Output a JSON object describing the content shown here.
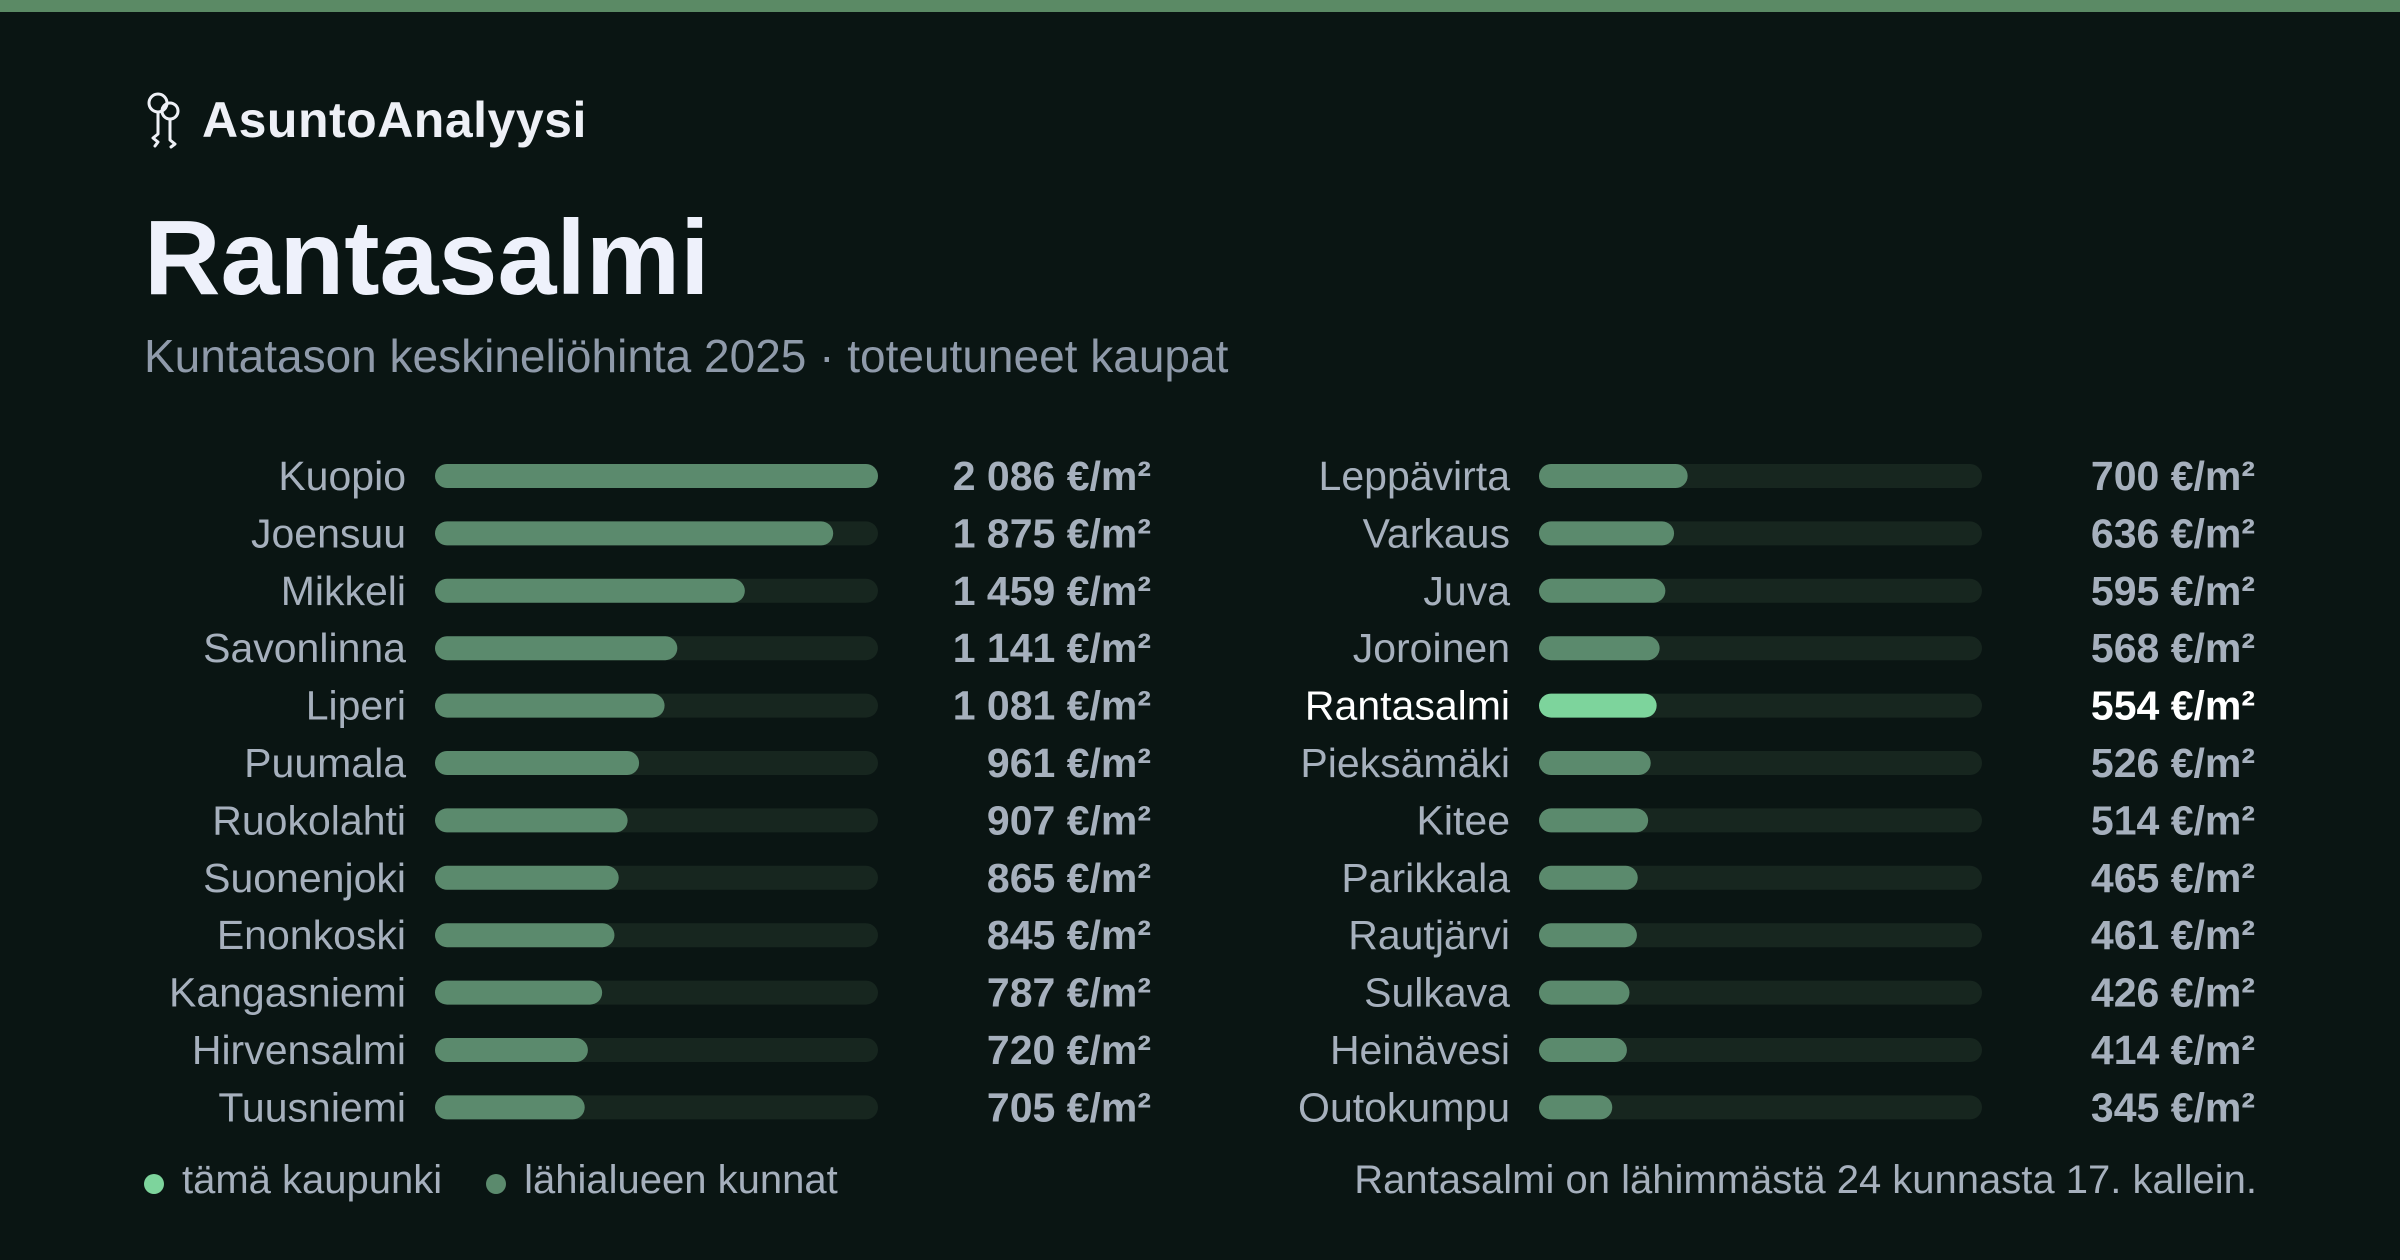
{
  "brand": {
    "name": "AsuntoAnalyysi",
    "icon": "keys-icon"
  },
  "title": "Rantasalmi",
  "subtitle": "Kuntatason keskineliöhinta 2025 · toteutuneet kaupat",
  "colors": {
    "background": "#0a1513",
    "bar": "#5b8a6d",
    "track": "#17261f",
    "highlight": "#7dd49c",
    "topbar": "#5b8a65"
  },
  "chart_data": {
    "type": "bar",
    "orientation": "horizontal",
    "unit": "€/m²",
    "xlim": [
      0,
      2086
    ],
    "highlight": "Rantasalmi",
    "categories": [
      "Kuopio",
      "Joensuu",
      "Mikkeli",
      "Savonlinna",
      "Liperi",
      "Puumala",
      "Ruokolahti",
      "Suonenjoki",
      "Enonkoski",
      "Kangasniemi",
      "Hirvensalmi",
      "Tuusniemi",
      "Leppävirta",
      "Varkaus",
      "Juva",
      "Joroinen",
      "Rantasalmi",
      "Pieksämäki",
      "Kitee",
      "Parikkala",
      "Rautjärvi",
      "Sulkava",
      "Heinävesi",
      "Outokumpu"
    ],
    "values": [
      2086,
      1875,
      1459,
      1141,
      1081,
      961,
      907,
      865,
      845,
      787,
      720,
      705,
      700,
      636,
      595,
      568,
      554,
      526,
      514,
      465,
      461,
      426,
      414,
      345
    ],
    "value_labels": [
      "2 086 €/m²",
      "1 875 €/m²",
      "1 459 €/m²",
      "1 141 €/m²",
      "1 081 €/m²",
      "961 €/m²",
      "907 €/m²",
      "865 €/m²",
      "845 €/m²",
      "787 €/m²",
      "720 €/m²",
      "705 €/m²",
      "700 €/m²",
      "636 €/m²",
      "595 €/m²",
      "568 €/m²",
      "554 €/m²",
      "526 €/m²",
      "514 €/m²",
      "465 €/m²",
      "461 €/m²",
      "426 €/m²",
      "414 €/m²",
      "345 €/m²"
    ]
  },
  "legend": {
    "this_city": "tämä kaupunki",
    "nearby": "lähialueen kunnat"
  },
  "footnote": "Rantasalmi on lähimmästä 24 kunnasta 17. kallein."
}
